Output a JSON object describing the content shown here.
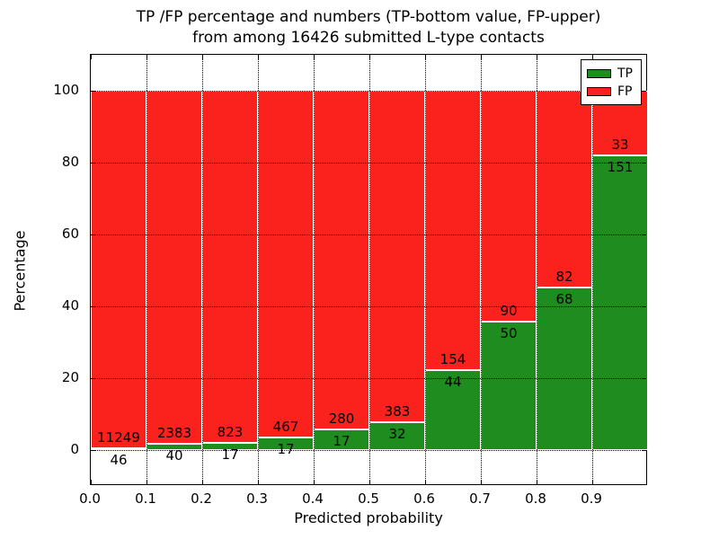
{
  "chart_data": {
    "type": "bar",
    "stacked": true,
    "title_line1": "TP /FP percentage and numbers (TP-bottom value, FP-upper)",
    "title_line2": "from among 16426 submitted L-type contacts",
    "total_submitted": 16426,
    "xlabel": "Predicted probability",
    "ylabel": "Percentage",
    "x_tick_labels": [
      "0.0",
      "0.1",
      "0.2",
      "0.3",
      "0.4",
      "0.5",
      "0.6",
      "0.7",
      "0.8",
      "0.9"
    ],
    "y_tick_values": [
      0,
      20,
      40,
      60,
      80,
      100
    ],
    "ylim": [
      -10,
      110
    ],
    "xlim": [
      0.0,
      1.0
    ],
    "bin_width": 0.1,
    "grid": "dotted",
    "legend_position": "upper-right",
    "series_note": "green TP percentage stacked below red FP percentage, each bar sums to 100%",
    "legend": [
      {
        "label": "TP",
        "color": "#1f8c1f"
      },
      {
        "label": "FP",
        "color": "#fb211c"
      }
    ],
    "bars": [
      {
        "bin_start": 0.0,
        "tp": 46,
        "fp": 11249
      },
      {
        "bin_start": 0.1,
        "tp": 40,
        "fp": 2383
      },
      {
        "bin_start": 0.2,
        "tp": 17,
        "fp": 823
      },
      {
        "bin_start": 0.3,
        "tp": 17,
        "fp": 467
      },
      {
        "bin_start": 0.4,
        "tp": 17,
        "fp": 280
      },
      {
        "bin_start": 0.5,
        "tp": 32,
        "fp": 383
      },
      {
        "bin_start": 0.6,
        "tp": 44,
        "fp": 154
      },
      {
        "bin_start": 0.7,
        "tp": 50,
        "fp": 90
      },
      {
        "bin_start": 0.8,
        "tp": 68,
        "fp": 82
      },
      {
        "bin_start": 0.9,
        "tp": 151,
        "fp": 33
      }
    ],
    "colors": {
      "tp": "#1f8c1f",
      "fp": "#fb211c",
      "grid": "#000000",
      "bar_edge": "#ffffff"
    }
  }
}
